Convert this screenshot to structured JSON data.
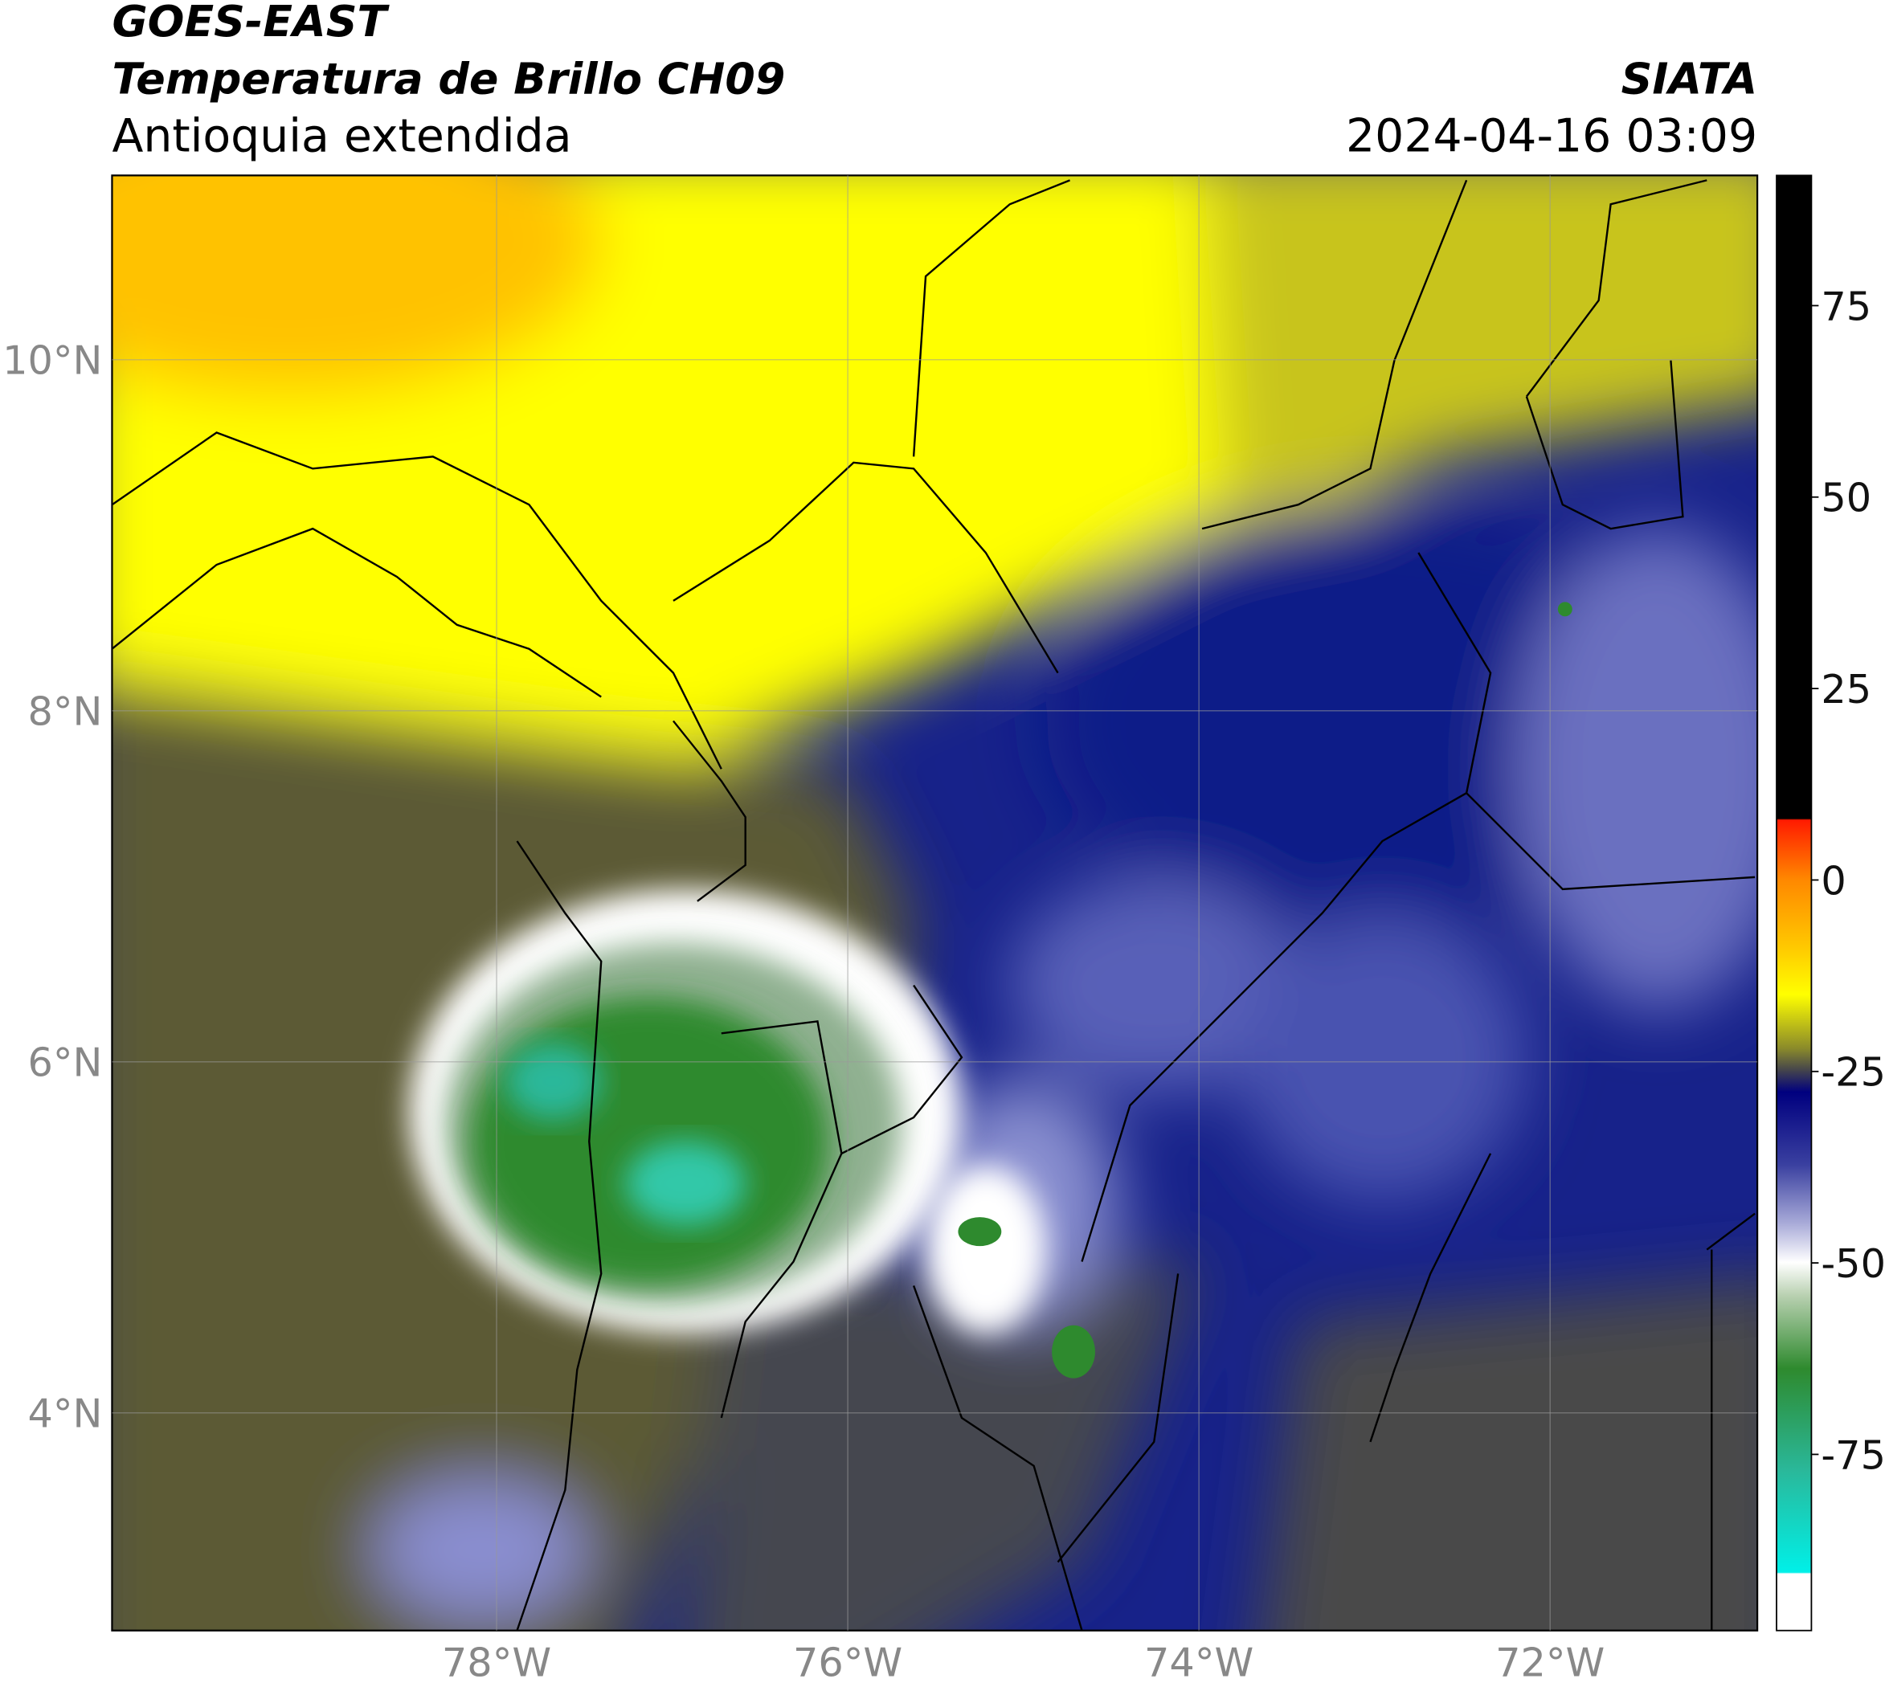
{
  "header": {
    "title": "GOES-EAST",
    "subtitle": "Temperatura de Brillo CH09",
    "region": "Antioquia extendida",
    "source": "SIATA",
    "datetime": "2024-04-16 03:09"
  },
  "map": {
    "xlim": [
      -80.19,
      -70.82
    ],
    "ylim": [
      2.76,
      11.05
    ],
    "xticks": [
      {
        "value": -78,
        "label": "78°W"
      },
      {
        "value": -76,
        "label": "76°W"
      },
      {
        "value": -74,
        "label": "74°W"
      },
      {
        "value": -72,
        "label": "72°W"
      }
    ],
    "yticks": [
      {
        "value": 10,
        "label": "10°N"
      },
      {
        "value": 8,
        "label": "8°N"
      },
      {
        "value": 6,
        "label": "6°N"
      },
      {
        "value": 4,
        "label": "4°N"
      }
    ],
    "grid": true
  },
  "colorbar": {
    "lim": [
      -98,
      92
    ],
    "ticks": [
      75,
      50,
      25,
      0,
      -25,
      -50,
      -75
    ]
  }
}
